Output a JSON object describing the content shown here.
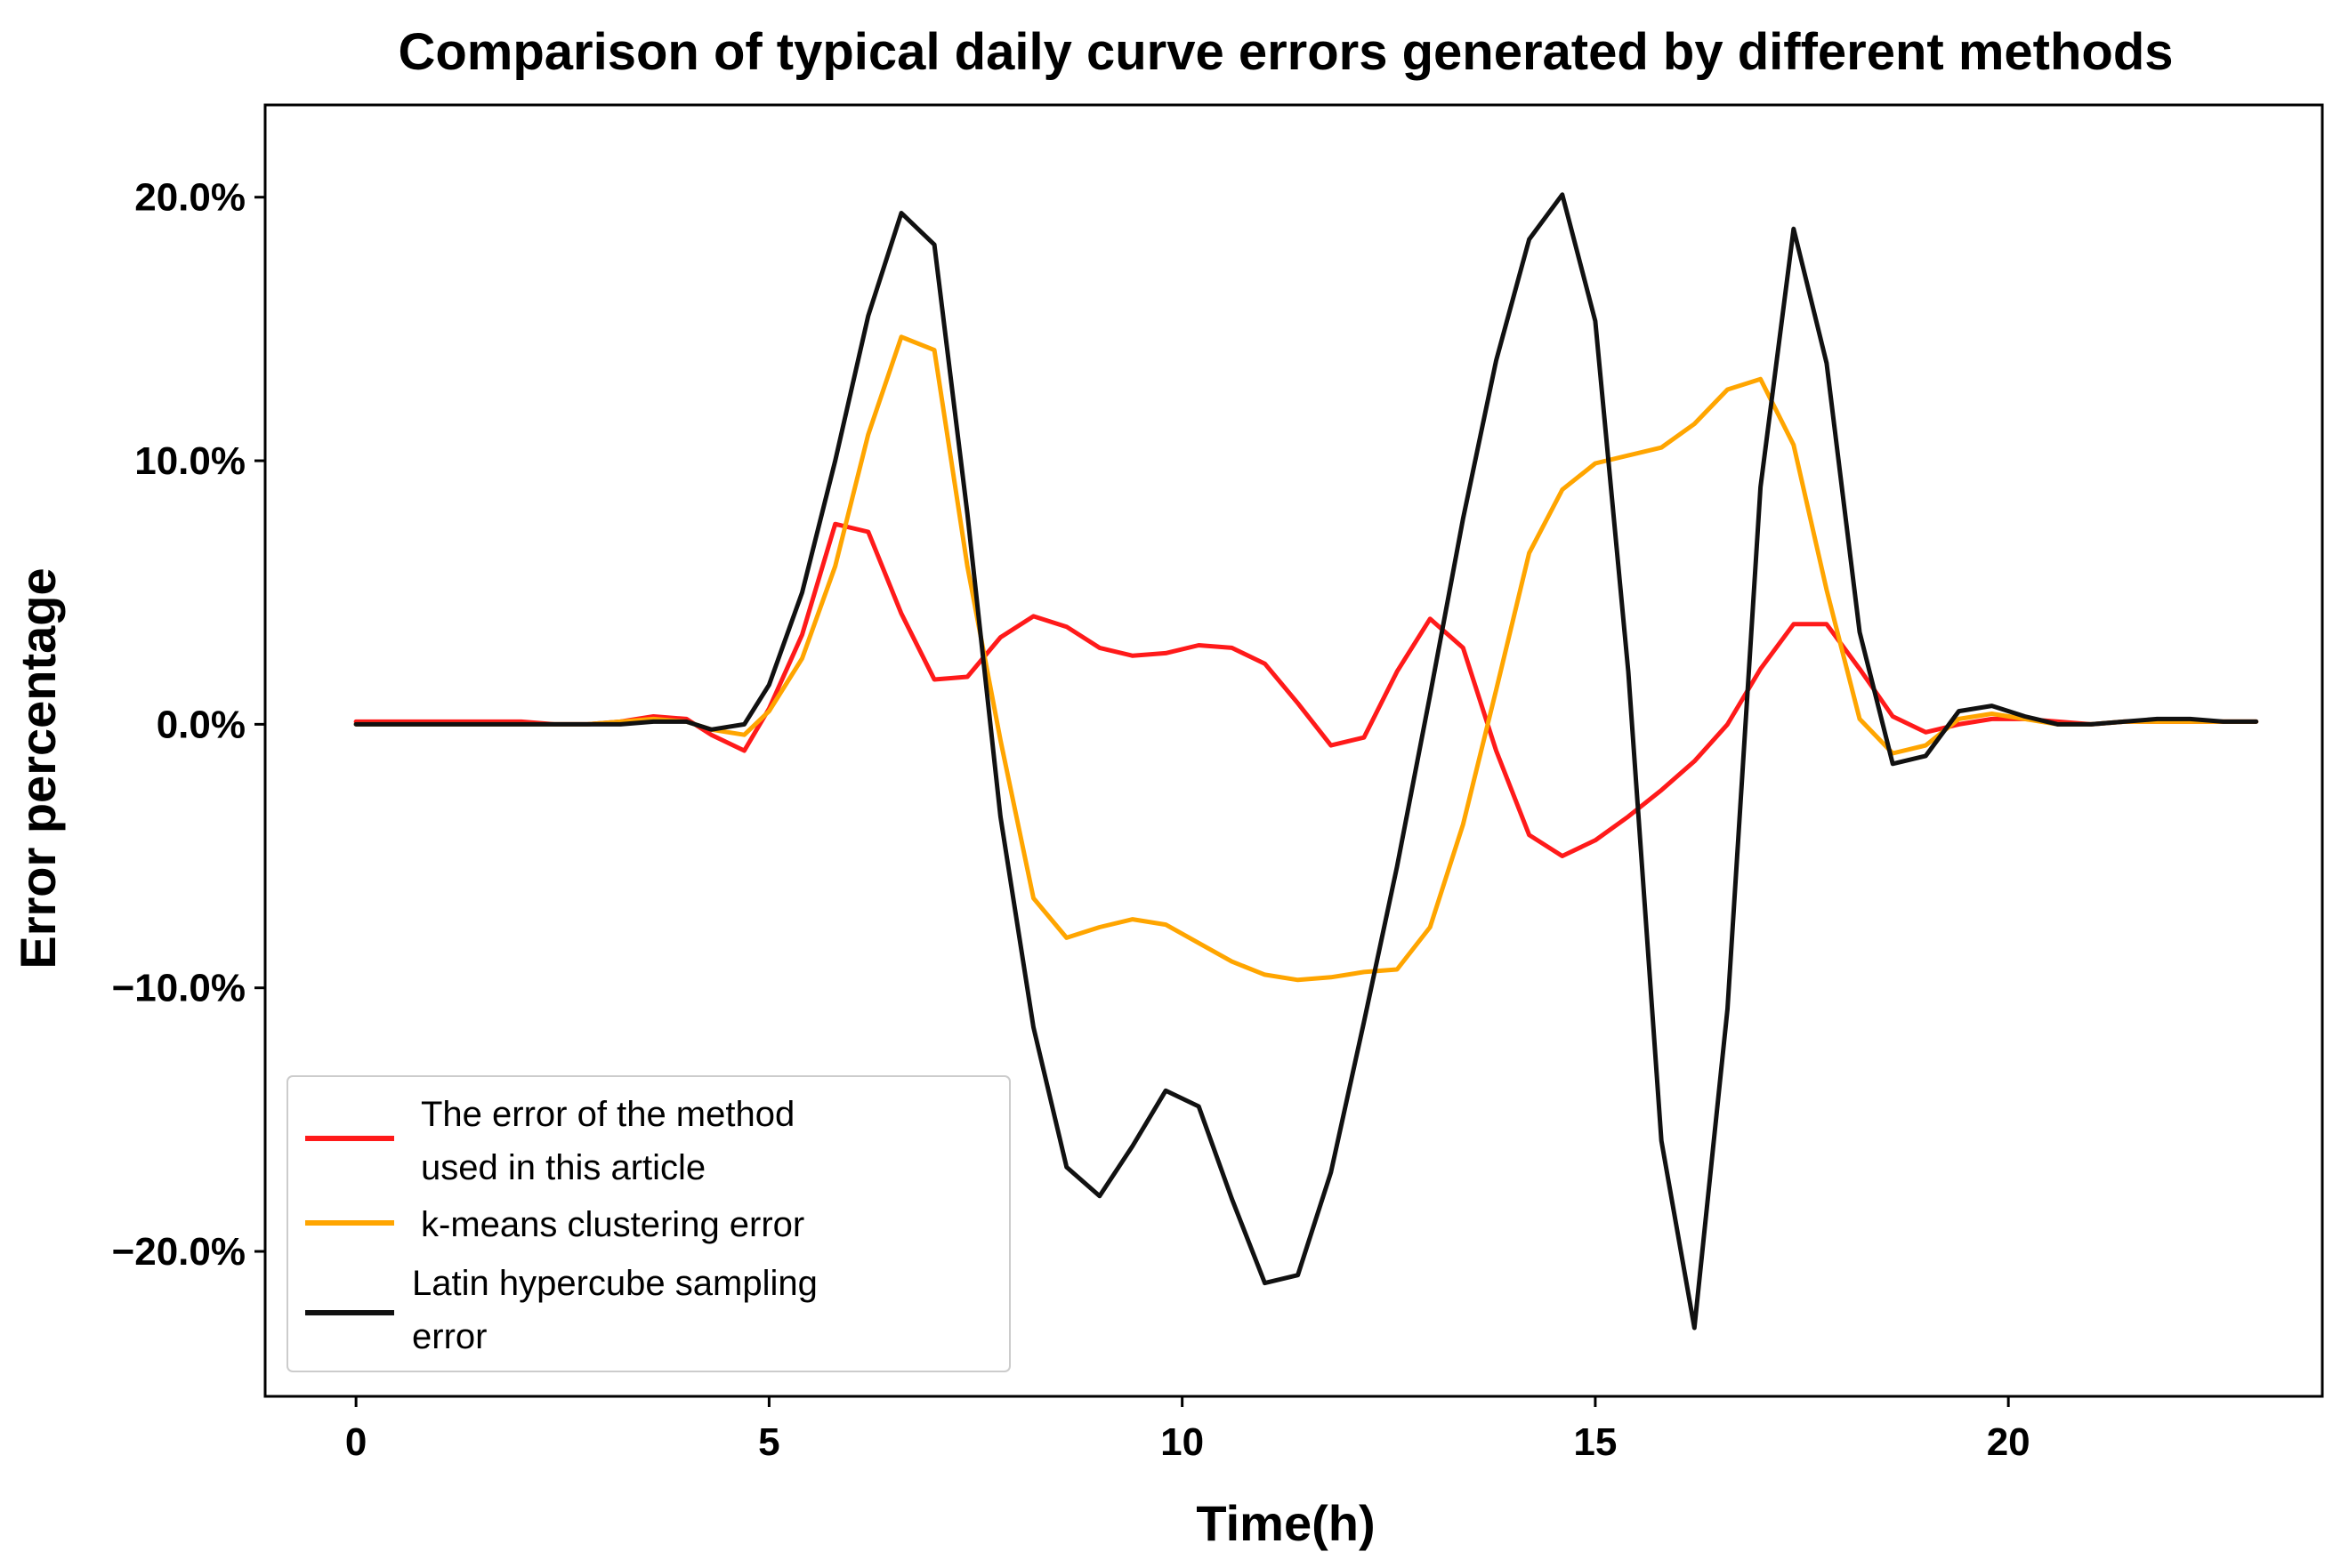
{
  "chart_data": {
    "type": "line",
    "title": "Comparison of typical daily curve errors generated by different methods",
    "xlabel": "Time(h)",
    "ylabel": "Error percentage",
    "xlim": [
      -1.1,
      23.8
    ],
    "ylim": [
      -25.5,
      23.5
    ],
    "xticks": [
      0,
      5,
      10,
      15,
      20
    ],
    "xtick_labels": [
      "0",
      "5",
      "10",
      "15",
      "20"
    ],
    "yticks": [
      20,
      10,
      0,
      -10,
      -20
    ],
    "ytick_labels": [
      "20.0%",
      "10.0%",
      "0.0%",
      "−10.0%",
      "−20.0%"
    ],
    "grid": false,
    "legend_position": "lower-left",
    "x": [
      0.0,
      0.4,
      0.8,
      1.2,
      1.6,
      2.0,
      2.4,
      2.8,
      3.2,
      3.6,
      4.0,
      4.3,
      4.7,
      5.0,
      5.4,
      5.8,
      6.2,
      6.6,
      7.0,
      7.4,
      7.8,
      8.2,
      8.6,
      9.0,
      9.4,
      9.8,
      10.2,
      10.6,
      11.0,
      11.4,
      11.8,
      12.2,
      12.6,
      13.0,
      13.4,
      13.8,
      14.2,
      14.6,
      15.0,
      15.4,
      15.8,
      16.2,
      16.6,
      17.0,
      17.4,
      17.8,
      18.2,
      18.6,
      19.0,
      19.4,
      19.8,
      20.2,
      20.6,
      21.0,
      21.4,
      21.8,
      22.2,
      22.6,
      23.0
    ],
    "series": [
      {
        "name": "The error of the method used in this article",
        "color": "#ff1a1a",
        "values": [
          0.1,
          0.1,
          0.1,
          0.1,
          0.1,
          0.1,
          0.0,
          0.0,
          0.1,
          0.3,
          0.2,
          -0.4,
          -1.0,
          0.6,
          3.4,
          7.6,
          7.3,
          4.2,
          1.7,
          1.8,
          3.3,
          4.1,
          3.7,
          2.9,
          2.6,
          2.7,
          3.0,
          2.9,
          2.3,
          0.8,
          -0.8,
          -0.5,
          2.0,
          4.0,
          2.9,
          -1.0,
          -4.2,
          -5.0,
          -4.4,
          -3.5,
          -2.5,
          -1.4,
          0.0,
          2.1,
          3.8,
          3.8,
          2.1,
          0.3,
          -0.3,
          0.0,
          0.2,
          0.2,
          0.1,
          0.0,
          0.1,
          0.1,
          0.1,
          0.1,
          0.1
        ]
      },
      {
        "name": "k-means clustering error",
        "color": "#ffa500",
        "values": [
          0.0,
          0.0,
          0.0,
          0.0,
          0.0,
          0.0,
          0.0,
          0.0,
          0.1,
          0.2,
          0.1,
          -0.2,
          -0.4,
          0.5,
          2.5,
          6.0,
          11.0,
          14.7,
          14.2,
          6.0,
          -0.6,
          -6.6,
          -8.1,
          -7.7,
          -7.4,
          -7.6,
          -8.3,
          -9.0,
          -9.5,
          -9.7,
          -9.6,
          -9.4,
          -9.3,
          -7.7,
          -3.8,
          1.3,
          6.5,
          8.9,
          9.9,
          10.2,
          10.5,
          11.4,
          12.7,
          13.1,
          10.6,
          5.1,
          0.2,
          -1.1,
          -0.8,
          0.2,
          0.4,
          0.2,
          0.0,
          0.0,
          0.1,
          0.1,
          0.1,
          0.1,
          0.1
        ]
      },
      {
        "name": "Latin hypercube sampling error",
        "color": "#111111",
        "values": [
          0.0,
          0.0,
          0.0,
          0.0,
          0.0,
          0.0,
          0.0,
          0.0,
          0.0,
          0.1,
          0.1,
          -0.2,
          0.0,
          1.5,
          5.0,
          10.0,
          15.5,
          19.4,
          18.2,
          8.0,
          -3.5,
          -11.5,
          -16.8,
          -17.9,
          -16.0,
          -13.9,
          -14.5,
          -18.0,
          -21.2,
          -20.9,
          -17.0,
          -11.3,
          -5.4,
          1.1,
          7.8,
          13.8,
          18.4,
          20.1,
          15.3,
          2.0,
          -15.8,
          -22.9,
          -10.8,
          9.0,
          18.8,
          13.7,
          3.5,
          -1.5,
          -1.2,
          0.5,
          0.7,
          0.3,
          0.0,
          0.0,
          0.1,
          0.2,
          0.2,
          0.1,
          0.1
        ]
      }
    ],
    "legend": [
      {
        "line1": "The error of the method",
        "line2": "used in this article",
        "color": "#ff1a1a"
      },
      {
        "line1": "k-means clustering error",
        "line2": "",
        "color": "#ffa500"
      },
      {
        "line1": "Latin hypercube sampling",
        "line2": "error",
        "color": "#111111"
      }
    ]
  }
}
